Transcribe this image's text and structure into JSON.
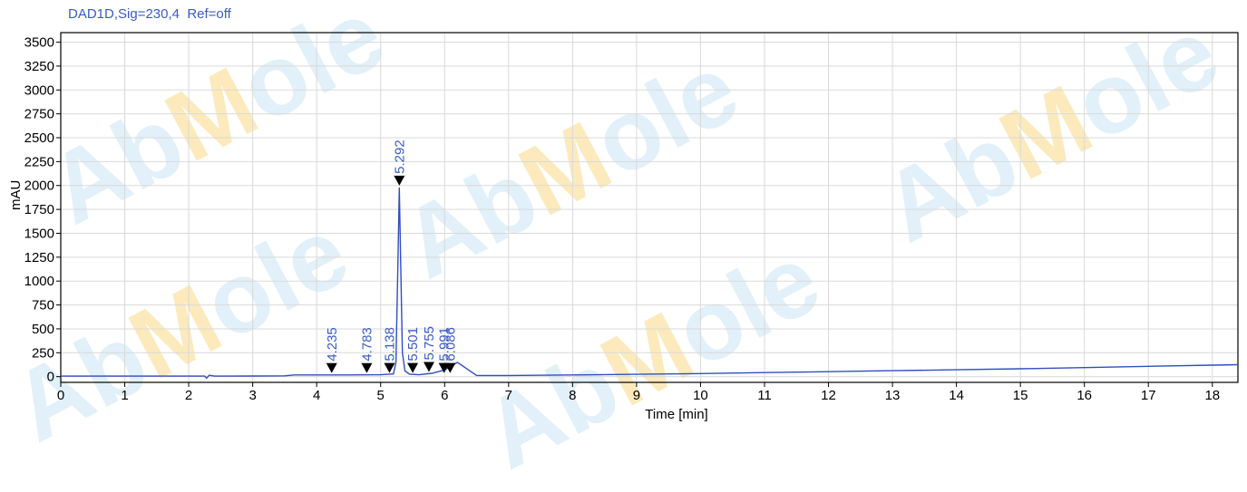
{
  "signal_title": "DAD1D,Sig=230,4  Ref=off",
  "watermark": "AbMole",
  "colors": {
    "trace": "#2f4fc0",
    "peak_label": "#3a5bc7",
    "marker": "#000000",
    "grid": "#d9d9d9",
    "watermark_blue": "#d7ebf8",
    "watermark_orange": "#fbe3a6"
  },
  "chart_data": {
    "type": "line",
    "title": "DAD1D,Sig=230,4  Ref=off",
    "xlabel": "Time [min]",
    "ylabel": "mAU",
    "xlim": [
      0,
      18.4
    ],
    "ylim": [
      -60,
      3600
    ],
    "x_ticks": [
      0,
      1,
      2,
      3,
      4,
      5,
      6,
      7,
      8,
      9,
      10,
      11,
      12,
      13,
      14,
      15,
      16,
      17,
      18
    ],
    "y_ticks": [
      0,
      250,
      500,
      750,
      1000,
      1250,
      1500,
      1750,
      2000,
      2250,
      2500,
      2750,
      3000,
      3250,
      3500
    ],
    "grid": true,
    "series": [
      {
        "x": [
          0,
          1,
          2,
          2.25,
          2.28,
          2.32,
          2.4,
          3,
          3.5,
          3.65,
          4,
          4.5,
          5,
          5.2,
          5.24,
          5.27,
          5.292,
          5.31,
          5.34,
          5.38,
          5.45,
          5.6,
          5.8,
          6,
          6.086,
          6.2,
          6.5,
          7,
          8,
          9,
          10,
          11,
          12,
          13,
          14,
          15,
          16,
          17,
          18,
          18.4
        ],
        "y": [
          5,
          5,
          5,
          5,
          -15,
          15,
          5,
          6,
          8,
          18,
          18,
          18,
          20,
          28,
          150,
          1200,
          1980,
          1300,
          250,
          60,
          25,
          20,
          35,
          70,
          105,
          150,
          12,
          12,
          18,
          24,
          32,
          42,
          52,
          62,
          72,
          82,
          95,
          108,
          120,
          125
        ]
      }
    ],
    "peaks": [
      {
        "label": "4.235",
        "x": 4.235,
        "y": 18
      },
      {
        "label": "4.783",
        "x": 4.783,
        "y": 18
      },
      {
        "label": "5.138",
        "x": 5.138,
        "y": 20
      },
      {
        "label": "5.292",
        "x": 5.292,
        "y": 1980
      },
      {
        "label": "5.501",
        "x": 5.501,
        "y": 20
      },
      {
        "label": "5.755",
        "x": 5.755,
        "y": 30
      },
      {
        "label": "5.991",
        "x": 5.991,
        "y": 20
      },
      {
        "label": "6.086",
        "x": 6.086,
        "y": 20
      }
    ]
  }
}
